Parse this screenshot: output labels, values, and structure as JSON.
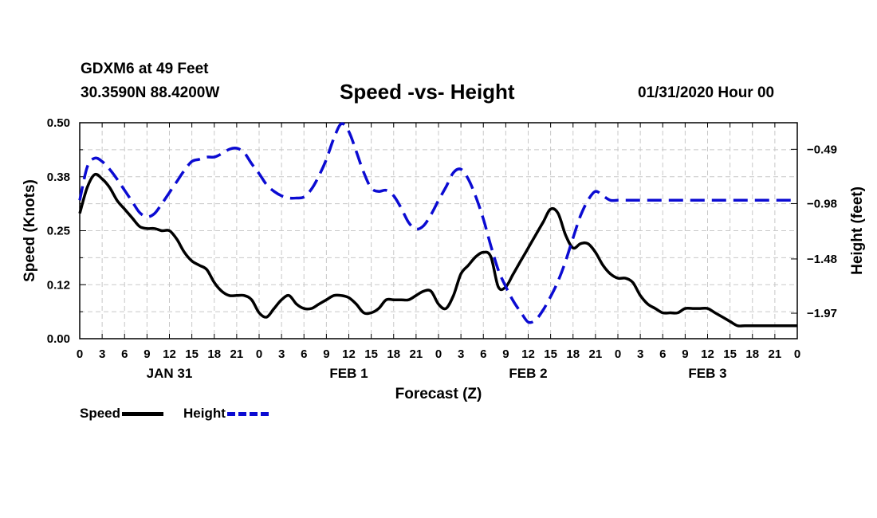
{
  "header": {
    "station": "GDXM6 at 49 Feet",
    "coords": "30.3590N 88.4200W",
    "title": "Speed -vs- Height",
    "date": "01/31/2020 Hour 00"
  },
  "legend": {
    "speed": "Speed",
    "height": "Height"
  },
  "colors": {
    "speed": "#000000",
    "height": "#0b0bd2",
    "grid": "#c8c8c8"
  },
  "chart_data": {
    "type": "line",
    "title": "Speed -vs- Height",
    "xlabel": "Forecast (Z)",
    "ylabel_left": "Speed (Knots)",
    "ylabel_right": "Height (feet)",
    "x_unit": "hours since 01/31/2020 00Z",
    "xlim": [
      0,
      96
    ],
    "ylim_left": [
      0,
      0.5
    ],
    "ylim_right": [
      -2.2,
      -0.25
    ],
    "left_ticks": [
      "0.00",
      "0.12",
      "0.25",
      "0.38",
      "0.50"
    ],
    "right_ticks": [
      "-0.49",
      "-0.98",
      "-1.48",
      "-1.97"
    ],
    "x_tick_labels": [
      "0",
      "3",
      "6",
      "9",
      "12",
      "15",
      "18",
      "21",
      "0",
      "3",
      "6",
      "9",
      "12",
      "15",
      "18",
      "21",
      "0",
      "3",
      "6",
      "9",
      "12",
      "15",
      "18",
      "21",
      "0",
      "3",
      "6",
      "9",
      "12",
      "15",
      "18",
      "21",
      "0"
    ],
    "day_labels": [
      {
        "hour": 12,
        "label": "JAN 31"
      },
      {
        "hour": 36,
        "label": "FEB 1"
      },
      {
        "hour": 60,
        "label": "FEB 2"
      },
      {
        "hour": 84,
        "label": "FEB 3"
      }
    ],
    "series": [
      {
        "name": "Speed",
        "axis": "left",
        "x": [
          0,
          1,
          2,
          3,
          4,
          5,
          6,
          7,
          8,
          9,
          10,
          11,
          12,
          13,
          14,
          15,
          16,
          17,
          18,
          19,
          20,
          21,
          22,
          23,
          24,
          25,
          26,
          27,
          28,
          29,
          30,
          31,
          32,
          33,
          34,
          35,
          36,
          37,
          38,
          39,
          40,
          41,
          42,
          43,
          44,
          45,
          46,
          47,
          48,
          49,
          50,
          51,
          52,
          53,
          54,
          55,
          56,
          57,
          58,
          59,
          60,
          61,
          62,
          63,
          64,
          65,
          66,
          67,
          68,
          69,
          70,
          71,
          72,
          73,
          74,
          75,
          76,
          77,
          78,
          79,
          80,
          81,
          82,
          83,
          84,
          85,
          86,
          87,
          88,
          89,
          90,
          91,
          92,
          93,
          94,
          95,
          96
        ],
        "values": [
          0.29,
          0.35,
          0.38,
          0.37,
          0.35,
          0.32,
          0.3,
          0.28,
          0.26,
          0.255,
          0.255,
          0.25,
          0.25,
          0.23,
          0.2,
          0.18,
          0.17,
          0.16,
          0.13,
          0.11,
          0.1,
          0.1,
          0.1,
          0.09,
          0.06,
          0.05,
          0.07,
          0.09,
          0.1,
          0.08,
          0.07,
          0.07,
          0.08,
          0.09,
          0.1,
          0.1,
          0.095,
          0.08,
          0.06,
          0.06,
          0.07,
          0.09,
          0.09,
          0.09,
          0.09,
          0.1,
          0.11,
          0.11,
          0.08,
          0.07,
          0.1,
          0.15,
          0.17,
          0.19,
          0.2,
          0.19,
          0.12,
          0.12,
          0.15,
          0.18,
          0.21,
          0.24,
          0.27,
          0.3,
          0.29,
          0.24,
          0.21,
          0.22,
          0.22,
          0.2,
          0.17,
          0.15,
          0.14,
          0.14,
          0.13,
          0.1,
          0.08,
          0.07,
          0.06,
          0.06,
          0.06,
          0.07,
          0.07,
          0.07,
          0.07,
          0.06,
          0.05,
          0.04,
          0.03,
          0.03,
          0.03,
          0.03,
          0.03,
          0.03,
          0.03,
          0.03,
          0.03
        ]
      },
      {
        "name": "Height",
        "axis": "right",
        "x": [
          0,
          1,
          2,
          3,
          4,
          5,
          6,
          7,
          8,
          9,
          10,
          11,
          12,
          13,
          14,
          15,
          16,
          17,
          18,
          19,
          20,
          21,
          22,
          23,
          24,
          25,
          26,
          27,
          28,
          29,
          30,
          31,
          32,
          33,
          34,
          35,
          36,
          37,
          38,
          39,
          40,
          41,
          42,
          43,
          44,
          45,
          46,
          47,
          48,
          49,
          50,
          51,
          52,
          53,
          54,
          55,
          56,
          57,
          58,
          59,
          60,
          61,
          62,
          63,
          64,
          65,
          66,
          67,
          68,
          69,
          70,
          71,
          72,
          73,
          74,
          75,
          76,
          77,
          78,
          79,
          80,
          81,
          82,
          83,
          84,
          85,
          86,
          87,
          88,
          89,
          90,
          91,
          92,
          93,
          94,
          95,
          96
        ],
        "values": [
          -0.95,
          -0.65,
          -0.57,
          -0.6,
          -0.67,
          -0.76,
          -0.86,
          -0.96,
          -1.06,
          -1.1,
          -1.07,
          -0.98,
          -0.88,
          -0.78,
          -0.68,
          -0.6,
          -0.58,
          -0.56,
          -0.56,
          -0.53,
          -0.49,
          -0.48,
          -0.52,
          -0.62,
          -0.71,
          -0.81,
          -0.87,
          -0.91,
          -0.93,
          -0.93,
          -0.92,
          -0.85,
          -0.73,
          -0.58,
          -0.39,
          -0.26,
          -0.33,
          -0.51,
          -0.7,
          -0.84,
          -0.87,
          -0.86,
          -0.91,
          -1.02,
          -1.15,
          -1.21,
          -1.18,
          -1.08,
          -0.95,
          -0.83,
          -0.7,
          -0.67,
          -0.76,
          -0.92,
          -1.12,
          -1.36,
          -1.58,
          -1.73,
          -1.86,
          -1.96,
          -2.05,
          -2.03,
          -1.94,
          -1.82,
          -1.68,
          -1.5,
          -1.29,
          -1.09,
          -0.95,
          -0.87,
          -0.91,
          -0.95,
          -0.95,
          -0.95,
          -0.95,
          -0.95,
          -0.95,
          -0.95,
          -0.95,
          -0.95,
          -0.95,
          -0.95,
          -0.95,
          -0.95,
          -0.95,
          -0.95,
          -0.95,
          -0.95,
          -0.95,
          -0.95,
          -0.95,
          -0.95,
          -0.95,
          -0.95,
          -0.95,
          -0.95,
          -0.95
        ]
      }
    ]
  }
}
